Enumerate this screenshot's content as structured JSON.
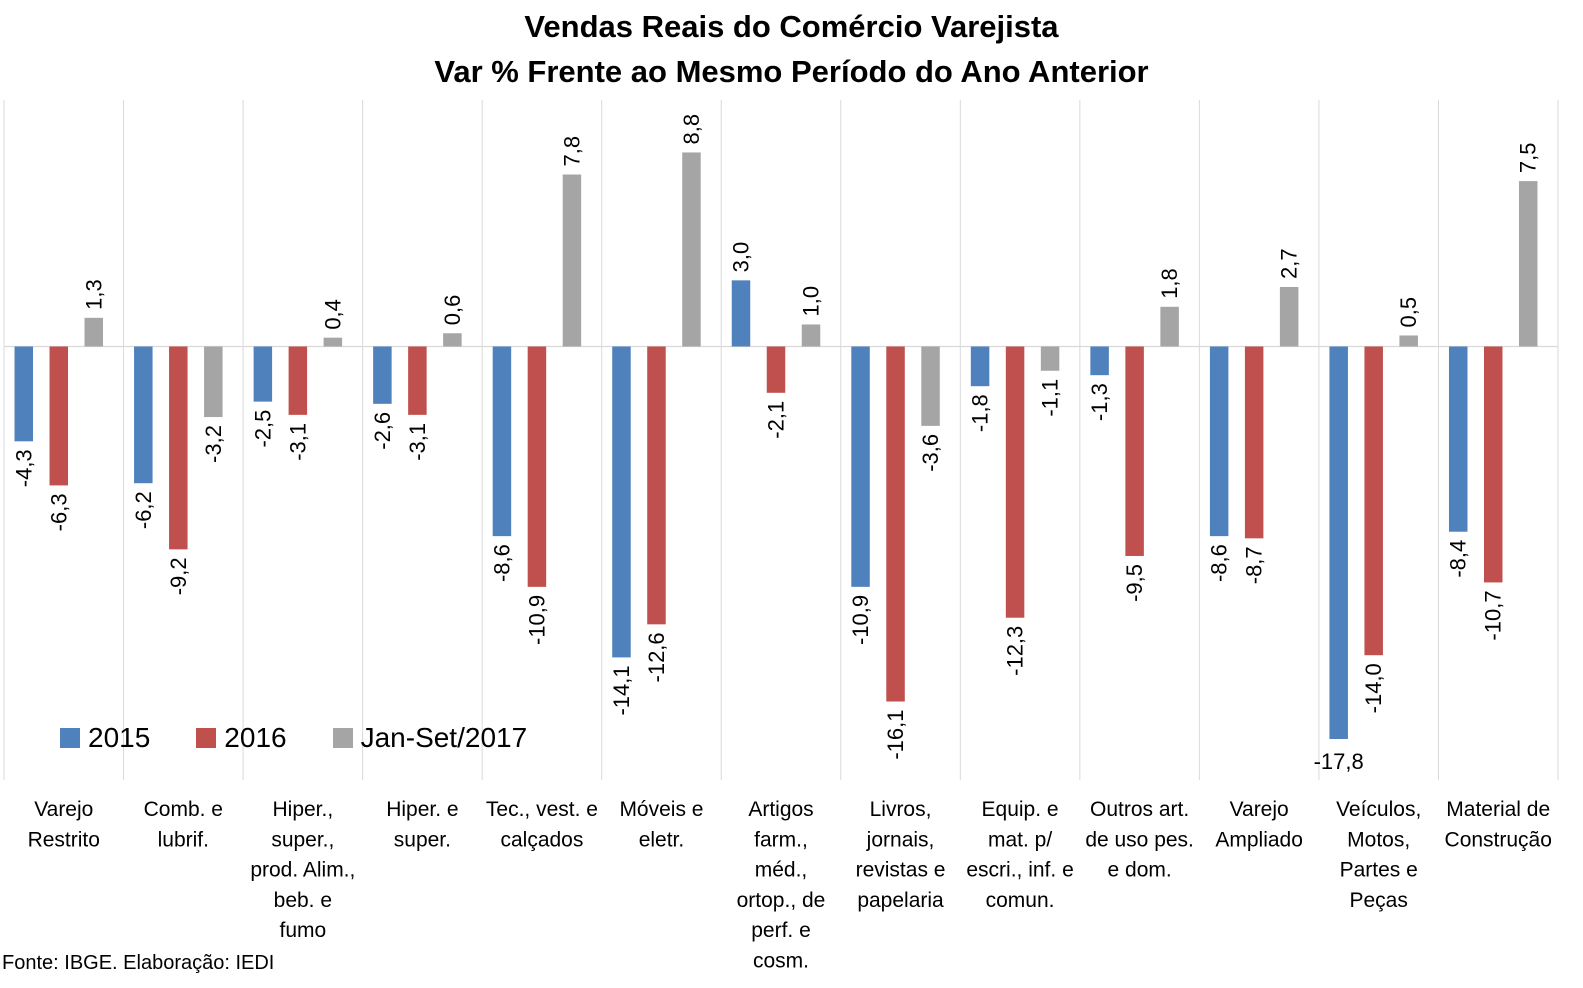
{
  "chart_data": {
    "type": "bar",
    "title": "Vendas Reais do Comércio Varejista",
    "subtitle": "Var % Frente ao Mesmo Período do Ano Anterior",
    "categories": [
      [
        "Varejo",
        "Restrito"
      ],
      [
        "Comb. e",
        "lubrif."
      ],
      [
        "Hiper.,",
        "super.,",
        "prod. Alim.,",
        "beb. e",
        "fumo"
      ],
      [
        "Hiper. e",
        "super."
      ],
      [
        "Tec., vest. e",
        "calçados"
      ],
      [
        "Móveis e",
        "eletr."
      ],
      [
        "Artigos",
        "farm.,",
        "méd.,",
        "ortop., de",
        "perf. e",
        "cosm."
      ],
      [
        "Livros,",
        "jornais,",
        "revistas e",
        "papelaria"
      ],
      [
        "Equip. e",
        "mat. p/",
        "escri., inf. e",
        "comun."
      ],
      [
        "Outros art.",
        "de uso pes.",
        "e dom."
      ],
      [
        "Varejo",
        "Ampliado"
      ],
      [
        "Veículos,",
        "Motos,",
        "Partes e",
        "Peças"
      ],
      [
        "Material de",
        "Construção"
      ]
    ],
    "series": [
      {
        "name": "2015",
        "color": "#4F81BD",
        "values": [
          -4.3,
          -6.2,
          -2.5,
          -2.6,
          -8.6,
          -14.1,
          3.0,
          -10.9,
          -1.8,
          -1.3,
          -8.6,
          -17.8,
          -8.4
        ],
        "labels": [
          "-4,3",
          "-6,2",
          "-2,5",
          "-2,6",
          "-8,6",
          "-14,1",
          "3,0",
          "-10,9",
          "-1,8",
          "-1,3",
          "-8,6",
          "-17,8",
          "-8,4"
        ]
      },
      {
        "name": "2016",
        "color": "#C0504D",
        "values": [
          -6.3,
          -9.2,
          -3.1,
          -3.1,
          -10.9,
          -12.6,
          -2.1,
          -16.1,
          -12.3,
          -9.5,
          -8.7,
          -14.0,
          -10.7
        ],
        "labels": [
          "-6,3",
          "-9,2",
          "-3,1",
          "-3,1",
          "-10,9",
          "-12,6",
          "-2,1",
          "-16,1",
          "-12,3",
          "-9,5",
          "-8,7",
          "-14,0",
          "-10,7"
        ]
      },
      {
        "name": "Jan-Set/2017",
        "color": "#A5A5A5",
        "values": [
          1.3,
          -3.2,
          0.4,
          0.6,
          7.8,
          8.8,
          1.0,
          -3.6,
          -1.1,
          1.8,
          2.7,
          0.5,
          7.5
        ],
        "labels": [
          "1,3",
          "-3,2",
          "0,4",
          "0,6",
          "7,8",
          "8,8",
          "1,0",
          "-3,6",
          "-1,1",
          "1,8",
          "2,7",
          "0,5",
          "7,5"
        ]
      }
    ],
    "legend_position": "bottom-left",
    "grid": false
  },
  "source": "Fonte: IBGE. Elaboração: IEDI"
}
